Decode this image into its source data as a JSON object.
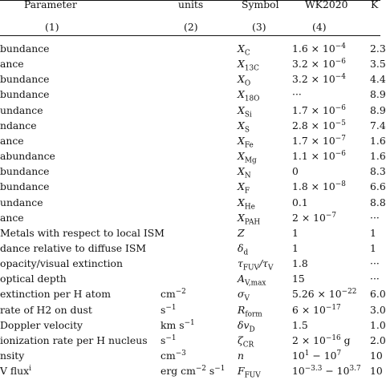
{
  "table": {
    "headers": [
      {
        "text": "Parameter",
        "col": "param"
      },
      {
        "text": "units",
        "col": "units"
      },
      {
        "text": "Symbol",
        "col": "symbol"
      },
      {
        "text": "WK2020",
        "col": "wk"
      },
      {
        "text": "K",
        "col": "k"
      }
    ],
    "column_numbers": [
      "(1)",
      "(2)",
      "(3)",
      "(4)"
    ],
    "rows": [
      {
        "param": "bundance",
        "units": "",
        "symbol": "X_C",
        "wk": "1.6 × 10^−4",
        "k": "2.3"
      },
      {
        "param": "ance",
        "units": "",
        "symbol": "X_13C",
        "wk": "3.2 × 10^−6",
        "k": "3.5"
      },
      {
        "param": "bundance",
        "units": "",
        "symbol": "X_O",
        "wk": "3.2 × 10^−4",
        "k": "4.4"
      },
      {
        "param": "bundance",
        "units": "",
        "symbol": "X_18O",
        "wk": "···",
        "k": "8.9"
      },
      {
        "param": "undance",
        "units": "",
        "symbol": "X_Si",
        "wk": "1.7 × 10^−6",
        "k": "8.9"
      },
      {
        "param": "ndance",
        "units": "",
        "symbol": "X_S",
        "wk": "2.8 × 10^−5",
        "k": "7.4"
      },
      {
        "param": "ance",
        "units": "",
        "symbol": "X_Fe",
        "wk": "1.7 × 10^−7",
        "k": "1.6"
      },
      {
        "param": "abundance",
        "units": "",
        "symbol": "X_Mg",
        "wk": "1.1 × 10^−6",
        "k": "1.6"
      },
      {
        "param": "bundance",
        "units": "",
        "symbol": "X_N",
        "wk": "0",
        "k": "8.3"
      },
      {
        "param": "bundance",
        "units": "",
        "symbol": "X_F",
        "wk": "1.8 × 10^−8",
        "k": "6.6"
      },
      {
        "param": "undance",
        "units": "",
        "symbol": "X_He",
        "wk": "0.1",
        "k": "8.8"
      },
      {
        "param": "ance",
        "units": "",
        "symbol": "X_PAH",
        "wk": "2 × 10^−7",
        "k": "···"
      },
      {
        "param": "Metals with respect to local ISM",
        "units": "",
        "symbol": "Z",
        "wk": "1",
        "k": "1"
      },
      {
        "param": "dance relative to diffuse ISM",
        "units": "",
        "symbol": "δ_d",
        "wk": "1",
        "k": "1"
      },
      {
        "param": "opacity/visual extinction",
        "units": "",
        "symbol": "τ_FUV/τ_V",
        "wk": "1.8",
        "k": "···"
      },
      {
        "param": "optical depth",
        "units": "",
        "symbol": "A_V,max",
        "wk": "15",
        "k": "···"
      },
      {
        "param": "extinction per H atom",
        "units": "cm^−2",
        "symbol": "σ_V",
        "wk": "5.26 × 10^−22",
        "k": "6.0"
      },
      {
        "param": "rate of H2 on dust",
        "units": "s^−1",
        "symbol": "R_form",
        "wk": "6 × 10^−17",
        "k": "3.0"
      },
      {
        "param": "Doppler velocity",
        "units": "km s^−1",
        "symbol": "δv_D",
        "wk": "1.5",
        "k": "1.0"
      },
      {
        "param": "ionization rate per H nucleus",
        "units": "s^−1",
        "symbol": "ζ_CR",
        "wk": "2 × 10^−16 g",
        "k": "2.0"
      },
      {
        "param": "nsity",
        "units": "cm^−3",
        "symbol": "n",
        "wk": "10^1 − 10^7",
        "k": "10"
      },
      {
        "param": "V flux^i",
        "units": "erg cm^−2 s^−1",
        "symbol": "F_FUV",
        "wk": "10^−3.3 − 10^3.7",
        "k": "10"
      }
    ]
  }
}
